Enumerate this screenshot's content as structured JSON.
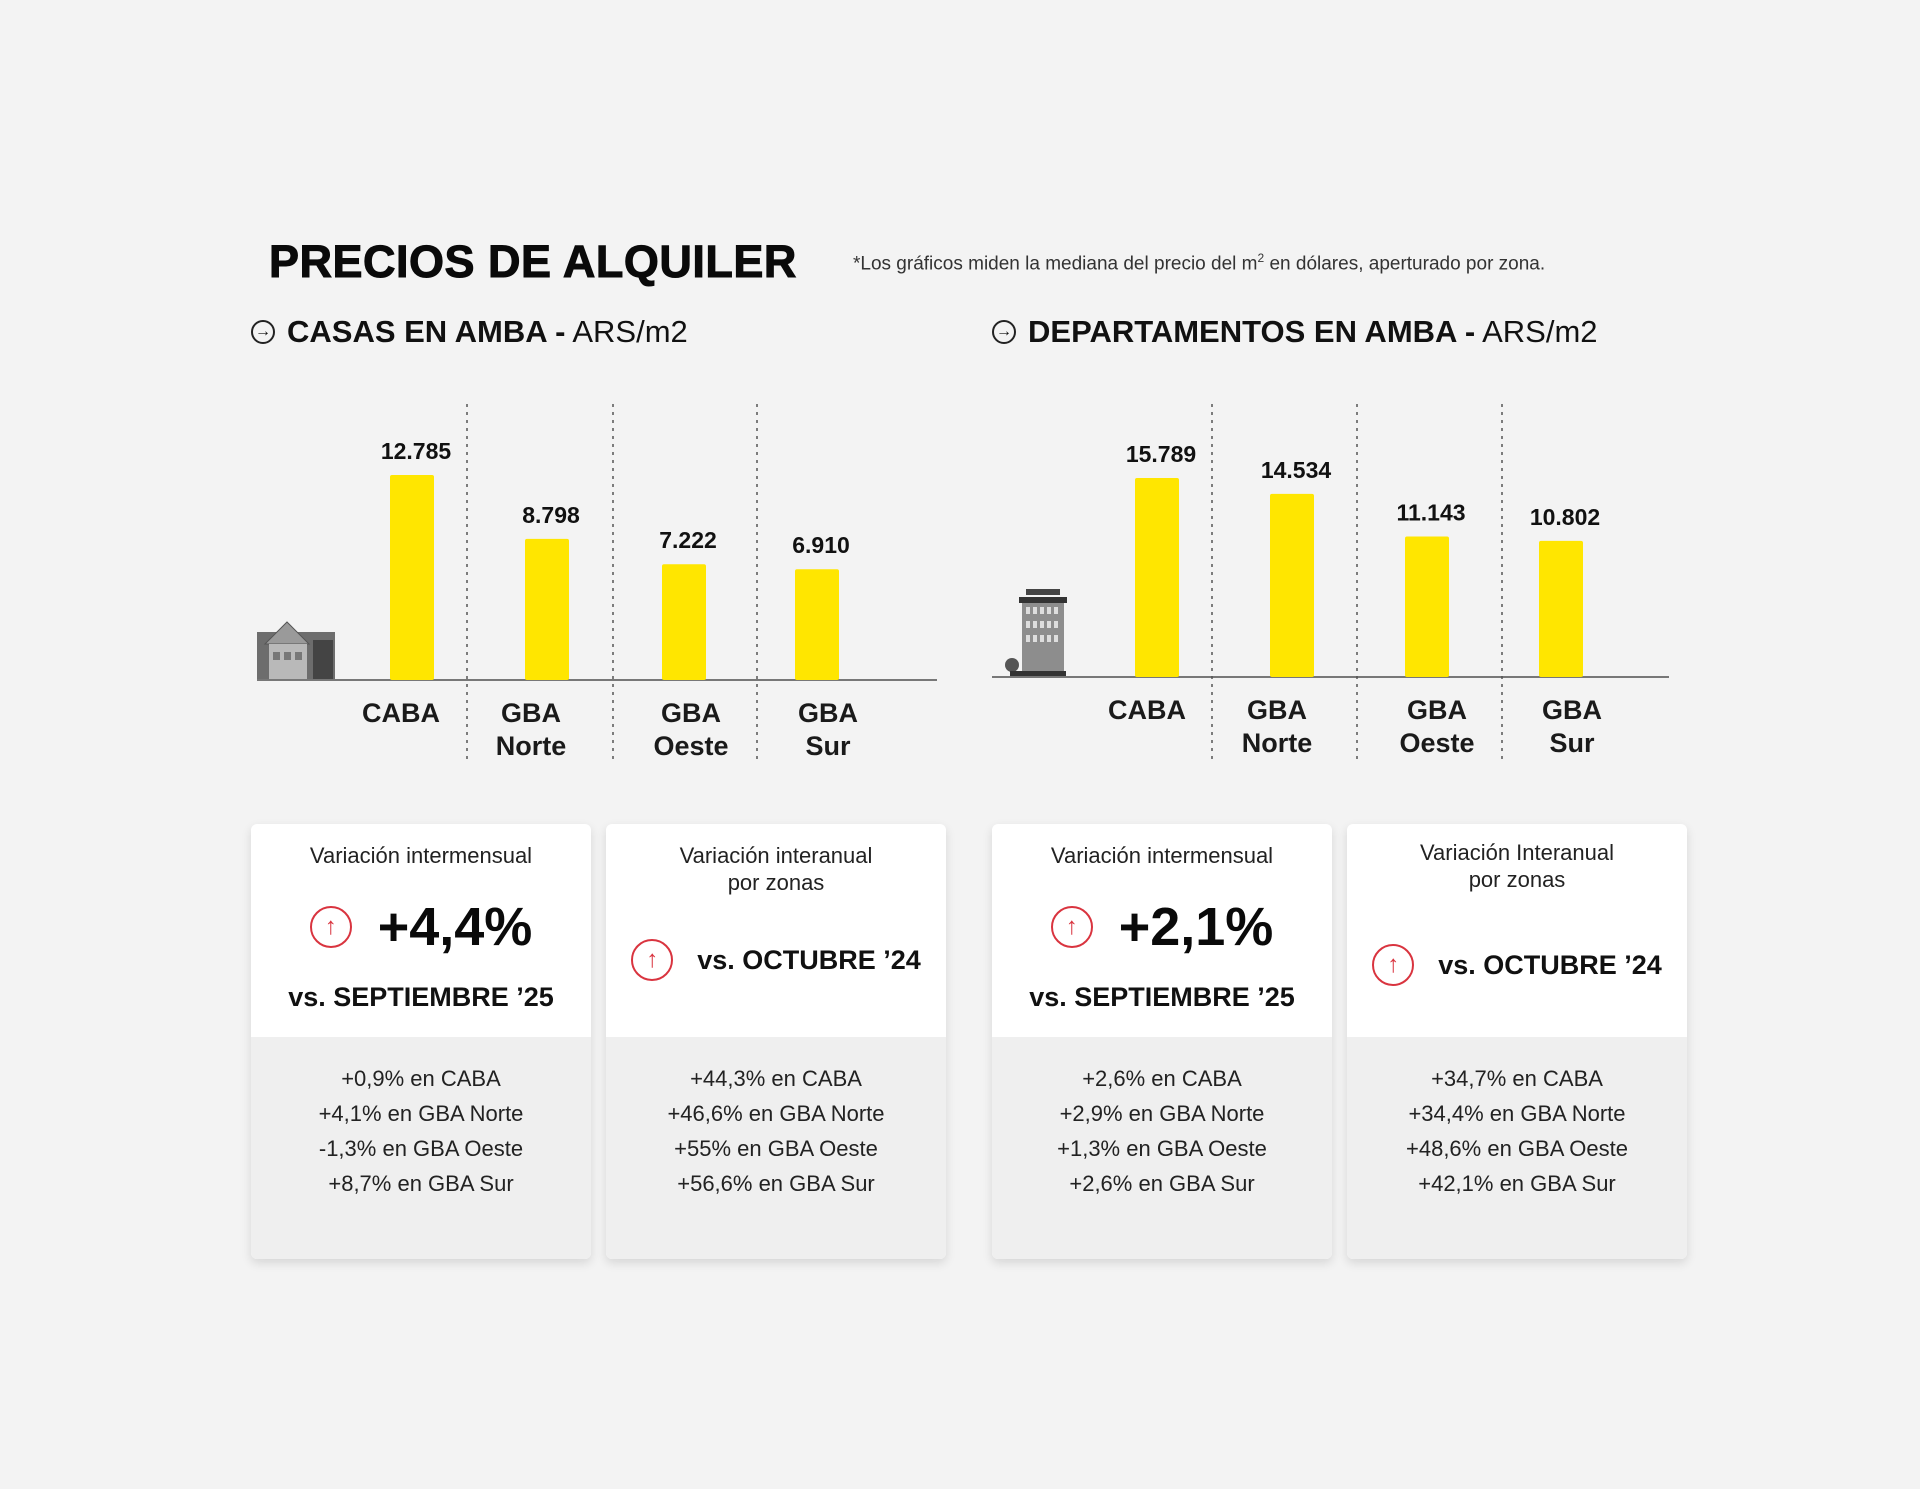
{
  "header": {
    "title": "PRECIOS DE ALQUILER",
    "note_prefix": "*Los gráficos miden la mediana del precio del m",
    "note_sup": "2",
    "note_suffix": " en dólares, aperturado por zona."
  },
  "colors": {
    "bar": "#FFE600",
    "accent_red": "#D9343F",
    "background": "#F3F3F3"
  },
  "chart_data": [
    {
      "type": "bar",
      "title_bold": "CASAS EN AMBA -",
      "title_unit": "ARS/m2",
      "icon": "house-icon",
      "categories": [
        [
          "CABA"
        ],
        [
          "GBA",
          "Norte"
        ],
        [
          "GBA",
          "Oeste"
        ],
        [
          "GBA",
          "Sur"
        ]
      ],
      "values": [
        12785,
        8798,
        7222,
        6910
      ],
      "labels": [
        "12.785",
        "8.798",
        "7.222",
        "6.910"
      ]
    },
    {
      "type": "bar",
      "title_bold": "DEPARTAMENTOS EN AMBA -",
      "title_unit": "ARS/m2",
      "icon": "building-icon",
      "categories": [
        [
          "CABA"
        ],
        [
          "GBA",
          "Norte"
        ],
        [
          "GBA",
          "Oeste"
        ],
        [
          "GBA",
          "Sur"
        ]
      ],
      "values": [
        15789,
        14534,
        11143,
        10802
      ],
      "labels": [
        "15.789",
        "14.534",
        "11.143",
        "10.802"
      ]
    }
  ],
  "cards": [
    {
      "title": "Variación intermensual",
      "title2": "",
      "value": "+4,4%",
      "vs": "vs. SEPTIEMBRE ’25",
      "icon": "arrow-up-circle-icon",
      "items": [
        "+0,9% en CABA",
        "+4,1% en GBA Norte",
        "-1,3% en GBA Oeste",
        "+8,7% en GBA Sur"
      ]
    },
    {
      "title": "Variación interanual",
      "title2": "por zonas",
      "vs": "vs. OCTUBRE ’24",
      "icon": "arrow-up-circle-icon",
      "items": [
        "+44,3% en CABA",
        "+46,6% en GBA Norte",
        "+55% en GBA Oeste",
        "+56,6% en GBA Sur"
      ]
    },
    {
      "title": "Variación intermensual",
      "title2": "",
      "value": "+2,1%",
      "vs": "vs. SEPTIEMBRE ’25",
      "icon": "arrow-up-circle-icon",
      "items": [
        "+2,6% en CABA",
        "+2,9% en GBA Norte",
        "+1,3% en GBA Oeste",
        "+2,6% en GBA Sur"
      ]
    },
    {
      "title": "Variación Interanual",
      "title2": "por zonas",
      "vs": "vs. OCTUBRE ’24",
      "icon": "arrow-up-circle-icon",
      "items": [
        "+34,7% en CABA",
        "+34,4% en GBA Norte",
        "+48,6% en GBA Oeste",
        "+42,1% en GBA Sur"
      ]
    }
  ]
}
